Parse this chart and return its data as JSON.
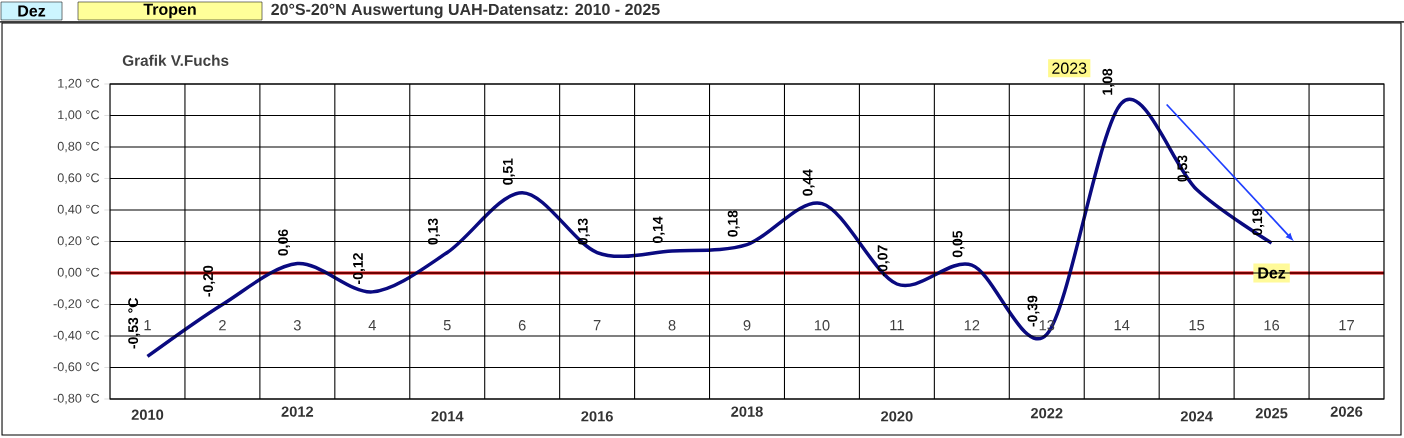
{
  "chart_data": {
    "type": "line",
    "title": "20°S-20°N Auswertung UAH-Datensatz: 2010 - 2025",
    "categories": [
      "1",
      "2",
      "3",
      "4",
      "5",
      "6",
      "7",
      "8",
      "9",
      "10",
      "11",
      "12",
      "13",
      "14",
      "15",
      "16",
      "17"
    ],
    "series": [
      {
        "color": "#0a0a80",
        "values": [
          -0.53,
          -0.2,
          0.06,
          -0.12,
          0.13,
          0.51,
          0.13,
          0.14,
          0.18,
          0.44,
          -0.07,
          0.05,
          -0.39,
          1.08,
          0.53,
          0.19,
          null
        ],
        "value_labels": [
          "-0,53 °C",
          "-0,20",
          "0,06",
          "-0,12",
          "0,13",
          "0,51",
          "0,13",
          "0,14",
          "0,18",
          "0,44",
          "-0,07",
          "0,05",
          "-0,39",
          "1,08",
          "0,53",
          "0,19",
          null
        ]
      }
    ],
    "ylim": [
      -0.8,
      1.2
    ],
    "yticks": [
      {
        "value": -0.8,
        "label": "-0,80 °C"
      },
      {
        "value": -0.6,
        "label": "-0,60 °C"
      },
      {
        "value": -0.4,
        "label": "-0,40 °C"
      },
      {
        "value": -0.2,
        "label": "-0,20 °C"
      },
      {
        "value": 0,
        "label": "0,00 °C"
      },
      {
        "value": 0.2,
        "label": "0,20 °C"
      },
      {
        "value": 0.4,
        "label": "0,40 °C"
      },
      {
        "value": 0.6,
        "label": "0,60 °C"
      },
      {
        "value": 0.8,
        "label": "0,80 °C"
      },
      {
        "value": 1.0,
        "label": "1,00 °C"
      },
      {
        "value": 1.2,
        "label": "1,20 °C"
      }
    ],
    "grid": true,
    "ref_lines": [
      {
        "axis": "y",
        "value": 0,
        "label": "Dez",
        "color": "#e00000"
      }
    ],
    "annotations": [
      "Dez",
      "Tropen",
      "Grafik V.Fuchs",
      "2023",
      "2010",
      "2012",
      "2014",
      "2016",
      "2018",
      "2020",
      "2022",
      "2024",
      "2025",
      "2026"
    ]
  }
}
